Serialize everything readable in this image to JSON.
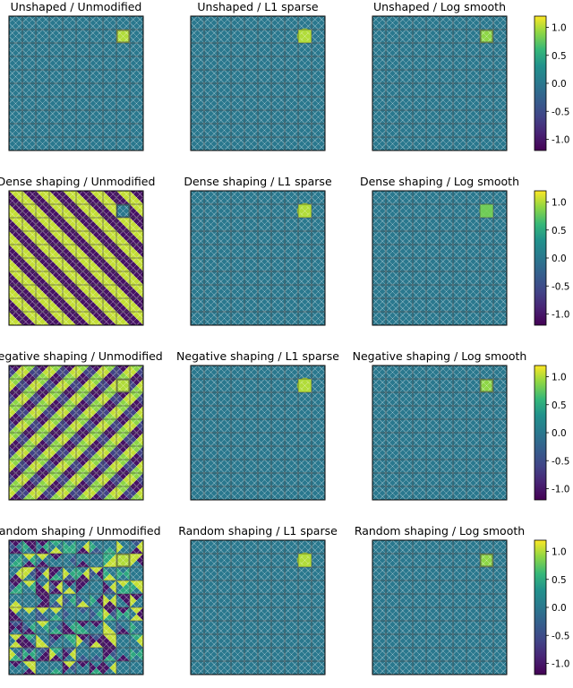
{
  "chart_data": {
    "type": "heatmap",
    "grid_size": 10,
    "description_rows": [
      "Unshaped",
      "Dense shaping",
      "Negative shaping",
      "Random shaping"
    ],
    "description_cols": [
      "Unmodified",
      "L1 sparse",
      "Log smooth"
    ],
    "colorscale": "viridis",
    "clim": [
      -1.2,
      1.2
    ],
    "colorbar_ticks": [
      "1.0",
      "0.5",
      "0.0",
      "-0.5",
      "-1.0"
    ],
    "colorbar_tick_values": [
      1.0,
      0.5,
      0.0,
      -0.5,
      -1.0
    ],
    "goal_cell": {
      "row": 1,
      "col": 8
    },
    "panels": [
      {
        "title": "Unshaped / Unmodified",
        "row": 0,
        "col": 0,
        "pattern": "goal-square",
        "goal_value": 1.0
      },
      {
        "title": "Unshaped / L1 sparse",
        "row": 0,
        "col": 1,
        "pattern": "goal-diamond",
        "goal_value": 1.0
      },
      {
        "title": "Unshaped / Log smooth",
        "row": 0,
        "col": 2,
        "pattern": "goal-square",
        "goal_value": 0.9
      },
      {
        "title": "Dense shaping / Unmodified",
        "row": 1,
        "col": 0,
        "pattern": "dense",
        "goal_value": 1.0
      },
      {
        "title": "Dense shaping / L1 sparse",
        "row": 1,
        "col": 1,
        "pattern": "goal-diamond",
        "goal_value": 1.0
      },
      {
        "title": "Dense shaping / Log smooth",
        "row": 1,
        "col": 2,
        "pattern": "goal-soft",
        "goal_value": 0.8
      },
      {
        "title": "Negative shaping / Unmodified",
        "row": 2,
        "col": 0,
        "pattern": "negative",
        "goal_value": 1.0
      },
      {
        "title": "Negative shaping / L1 sparse",
        "row": 2,
        "col": 1,
        "pattern": "goal-diamond",
        "goal_value": 1.0
      },
      {
        "title": "Negative shaping / Log smooth",
        "row": 2,
        "col": 2,
        "pattern": "goal-square",
        "goal_value": 0.9
      },
      {
        "title": "Random shaping / Unmodified",
        "row": 3,
        "col": 0,
        "pattern": "random",
        "goal_value": 1.0
      },
      {
        "title": "Random shaping / L1 sparse",
        "row": 3,
        "col": 1,
        "pattern": "goal-diamond",
        "goal_value": 1.0
      },
      {
        "title": "Random shaping / Log smooth",
        "row": 3,
        "col": 2,
        "pattern": "goal-square",
        "goal_value": 0.9
      }
    ]
  }
}
